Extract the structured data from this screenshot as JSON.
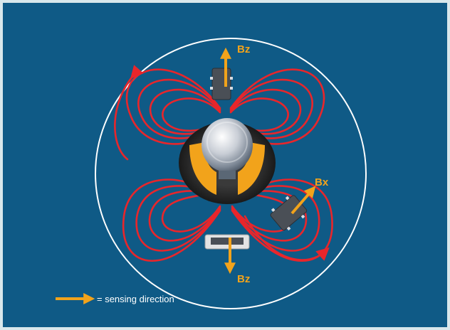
{
  "labels": {
    "bz_top": "Bz",
    "bz_bottom": "Bz",
    "bx": "Bx",
    "legend": "= sensing direction"
  },
  "icons": [
    "arrow-icon",
    "magnetic-field-line",
    "sensor-chip",
    "magnet-cylinder",
    "ring-magnet"
  ],
  "colors": {
    "background": "#0f5a86",
    "field_lines": "#e8262b",
    "arrow": "#f2a31b",
    "ring": "#262626",
    "circle": "#ffffff"
  }
}
